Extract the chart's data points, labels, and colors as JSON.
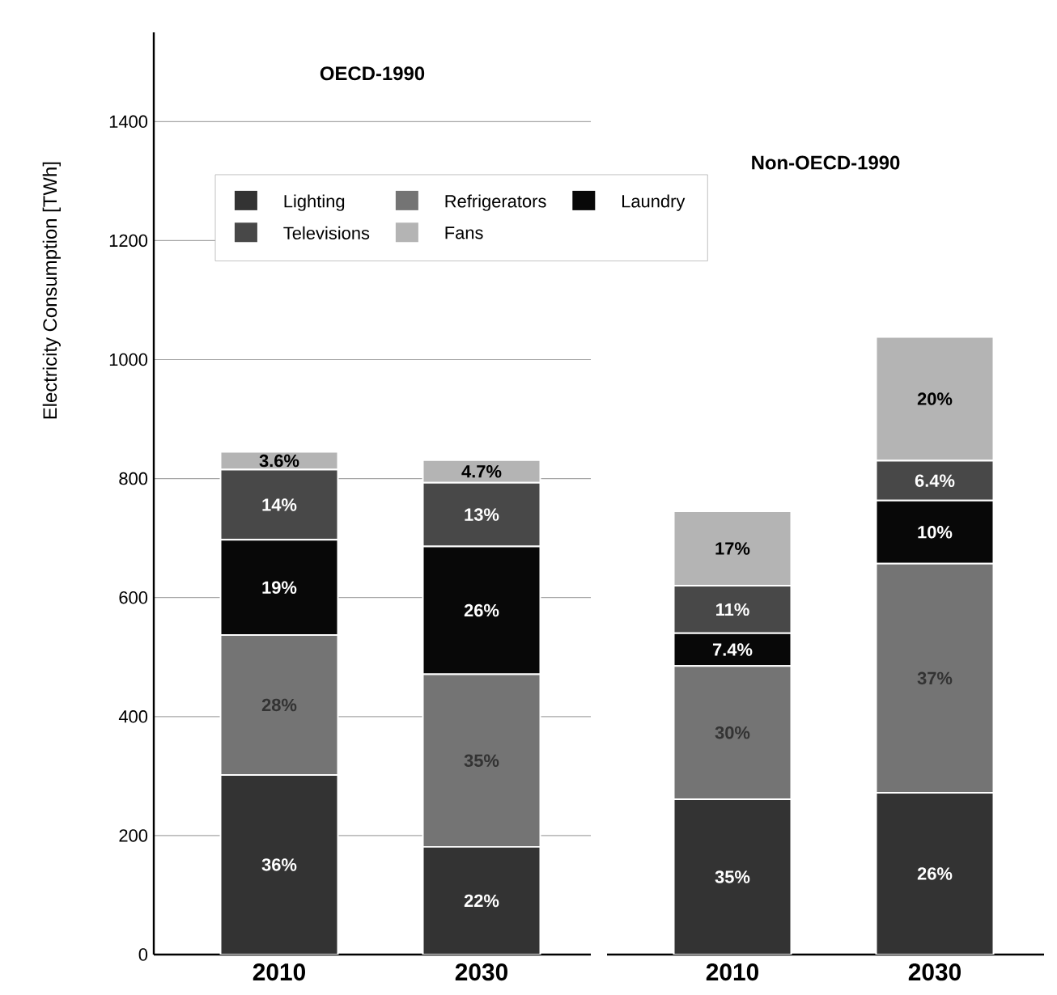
{
  "chart_data": [
    {
      "type": "bar",
      "title": "OECD-1990",
      "ylabel": "Electricity Consumption [TWh]",
      "categories": [
        "2010",
        "2030"
      ],
      "stacked": true,
      "ylim": [
        0,
        1550
      ],
      "yticks": [
        0,
        200,
        400,
        600,
        800,
        1000,
        1200,
        1400
      ],
      "grid": "y",
      "legend": "top",
      "series": [
        {
          "name": "Lighting",
          "color": "#333333",
          "values": [
            302,
            181
          ]
        },
        {
          "name": "Refrigerators",
          "color": "#747474",
          "values": [
            235,
            290
          ]
        },
        {
          "name": "Laundry",
          "color": "#080808",
          "values": [
            160,
            215
          ]
        },
        {
          "name": "Televisions",
          "color": "#484848",
          "values": [
            118,
            107
          ]
        },
        {
          "name": "Fans",
          "color": "#b4b4b4",
          "values": [
            30,
            38
          ]
        }
      ],
      "annotations": [
        "36%",
        "28%",
        "19%",
        "14%",
        "3.6%",
        "22%",
        "35%",
        "26%",
        "13%",
        "4.7%"
      ]
    },
    {
      "type": "bar",
      "title": "Non-OECD-1990",
      "categories": [
        "2010",
        "2030"
      ],
      "stacked": true,
      "ylim": [
        0,
        1400
      ],
      "yticks": [
        0,
        200,
        400,
        600,
        800,
        1000,
        1200,
        1400
      ],
      "grid": "y",
      "tick_labels": "x",
      "series": [
        {
          "color": "#333333",
          "values": [
            261,
            272
          ]
        },
        {
          "color": "#747474",
          "values": [
            224,
            385
          ]
        },
        {
          "color": "#080808",
          "values": [
            55,
            106
          ]
        },
        {
          "color": "#484848",
          "values": [
            80,
            67
          ]
        },
        {
          "color": "#b4b4b4",
          "values": [
            125,
            208
          ]
        }
      ],
      "annotations": [
        "35%",
        "30%",
        "7.4%",
        "11%",
        "17%",
        "26%",
        "37%",
        "10%",
        "6.4%",
        "20%"
      ]
    }
  ]
}
